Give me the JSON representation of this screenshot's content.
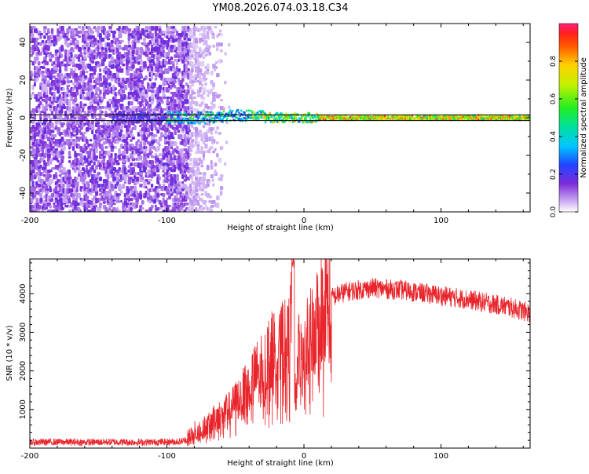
{
  "title": "YM08.2026.074.03.18.C34",
  "colors": {
    "axis": "#000000",
    "snr_line": "#e8252b",
    "spec_low": "#7d2bd9",
    "spec_high": "#ff1f1f",
    "band_line": "#000000"
  },
  "chart_data": [
    {
      "type": "heatmap",
      "name": "spectrogram",
      "xlabel": "Height of straight line (km)",
      "ylabel": "Frequency (Hz)",
      "xlim": [
        -200,
        165
      ],
      "ylim": [
        -50,
        50
      ],
      "xticks": [
        -200,
        -100,
        0,
        100
      ],
      "yticks": [
        -40,
        -20,
        0,
        20,
        40
      ],
      "band_lines_hz": [
        1.5,
        -1.5
      ],
      "colorbar": {
        "label": "Normalized spectral amplitude",
        "range": [
          0.0,
          1.0
        ],
        "ticks": [
          0.0,
          0.2,
          0.4,
          0.6,
          0.8
        ],
        "tick_labels": [
          "0.0",
          "0.2",
          "0.4",
          "0.6",
          "0.8"
        ]
      },
      "features": [
        {
          "x_range": [
            -200,
            -85
          ],
          "description_level": 0.15
        },
        {
          "x_range": [
            -85,
            -60
          ],
          "description_level": 0.05
        },
        {
          "x_range": [
            -140,
            10
          ],
          "signal_freq_hz": 0,
          "level": 0.6
        },
        {
          "x_range": [
            10,
            165
          ],
          "signal_freq_hz": 0,
          "level": 0.95
        }
      ]
    },
    {
      "type": "line",
      "name": "snr",
      "xlabel": "Height of straight line (km)",
      "ylabel": "SNR (10 * v/v)",
      "xlim": [
        -200,
        165
      ],
      "ylim": [
        0,
        4900
      ],
      "xticks": [
        -200,
        -100,
        0,
        100
      ],
      "yticks": [
        1000,
        2000,
        3000,
        4000
      ],
      "series": [
        {
          "name": "SNR",
          "x": [
            -200,
            -180,
            -160,
            -140,
            -120,
            -100,
            -90,
            -85,
            -80,
            -75,
            -70,
            -65,
            -60,
            -55,
            -50,
            -45,
            -40,
            -35,
            -30,
            -25,
            -20,
            -15,
            -12,
            -10,
            -8,
            -7,
            -5,
            -3,
            0,
            5,
            10,
            15,
            20,
            30,
            40,
            50,
            60,
            70,
            80,
            90,
            100,
            110,
            120,
            130,
            140,
            150,
            160,
            165
          ],
          "values": [
            150,
            160,
            150,
            160,
            150,
            160,
            170,
            220,
            400,
            500,
            600,
            800,
            900,
            1000,
            1200,
            1400,
            1700,
            1900,
            2200,
            2400,
            2600,
            2700,
            2600,
            3000,
            4700,
            2000,
            3000,
            2300,
            2500,
            2900,
            3400,
            3700,
            3900,
            4050,
            4100,
            4150,
            4120,
            4100,
            4050,
            4000,
            3950,
            3900,
            3850,
            3780,
            3720,
            3650,
            3550,
            3500
          ]
        }
      ]
    }
  ]
}
